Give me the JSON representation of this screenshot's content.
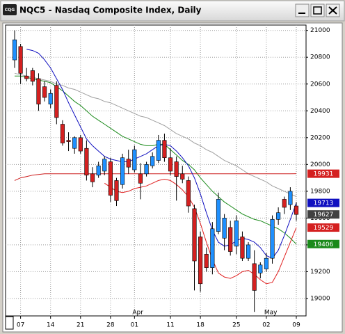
{
  "chart_data": {
    "type": "candlestick",
    "title": "NQC5 - Nasdaq Composite Index, Daily",
    "icon_text": "CQG",
    "categories": [
      null,
      "07",
      null,
      null,
      null,
      null,
      "14",
      null,
      null,
      null,
      null,
      "21",
      null,
      null,
      null,
      null,
      "28",
      null,
      null,
      null,
      "01",
      null,
      null,
      null,
      null,
      null,
      "11",
      null,
      null,
      null,
      null,
      "18",
      null,
      null,
      null,
      null,
      null,
      "25",
      null,
      null,
      null,
      null,
      "02",
      null,
      null,
      null,
      null,
      "09"
    ],
    "period_labels": [
      null,
      null,
      null,
      null,
      null,
      null,
      null,
      null,
      null,
      null,
      null,
      null,
      null,
      null,
      null,
      null,
      null,
      null,
      null,
      null,
      "Apr",
      null,
      null,
      null,
      null,
      null,
      null,
      null,
      null,
      null,
      null,
      null,
      null,
      null,
      null,
      null,
      null,
      null,
      null,
      null,
      null,
      null,
      "May",
      null,
      null,
      null,
      null,
      null
    ],
    "open": [
      20780,
      20880,
      20660,
      20700,
      20640,
      20580,
      20450,
      20590,
      20300,
      20180,
      20120,
      20200,
      20120,
      19930,
      19920,
      19950,
      20020,
      19880,
      19850,
      20040,
      19960,
      19930,
      19930,
      19990,
      20030,
      20180,
      20050,
      20020,
      19930,
      19880,
      19670,
      19460,
      19330,
      19230,
      19500,
      19450,
      19530,
      19390,
      19460,
      19300,
      19260,
      19190,
      19220,
      19300,
      19590,
      19740,
      19700,
      19690
    ],
    "high": [
      21000,
      20900,
      20720,
      20720,
      20680,
      20620,
      20560,
      20620,
      20330,
      20240,
      20210,
      20220,
      20180,
      19980,
      20020,
      20060,
      20050,
      19900,
      20080,
      20110,
      20140,
      20010,
      20020,
      20090,
      20220,
      20230,
      20120,
      20060,
      19990,
      19910,
      19700,
      19500,
      19380,
      19570,
      19790,
      19630,
      19580,
      19620,
      19500,
      19420,
      19360,
      19270,
      19340,
      19620,
      19680,
      19760,
      19830,
      19720
    ],
    "low": [
      20720,
      20600,
      20620,
      20590,
      20400,
      20470,
      20420,
      20300,
      20140,
      20100,
      20080,
      20080,
      19880,
      19830,
      19900,
      19920,
      19720,
      19690,
      19820,
      19930,
      19940,
      19740,
      19910,
      19970,
      20010,
      20020,
      19920,
      19730,
      19860,
      19640,
      19060,
      19050,
      19200,
      19180,
      19480,
      19360,
      19320,
      19330,
      19280,
      19280,
      18900,
      19150,
      19200,
      19260,
      19550,
      19630,
      19660,
      19580
    ],
    "close": [
      20930,
      20680,
      20640,
      20620,
      20450,
      20500,
      20530,
      20350,
      20160,
      20170,
      20200,
      20100,
      19920,
      19870,
      19990,
      20040,
      19770,
      19730,
      20050,
      19980,
      20110,
      19860,
      20000,
      20060,
      20180,
      20050,
      19950,
      19910,
      19890,
      19690,
      19280,
      19110,
      19230,
      19520,
      19740,
      19600,
      19350,
      19580,
      19300,
      19400,
      19060,
      19250,
      19300,
      19590,
      19640,
      19680,
      19800,
      19627
    ],
    "up_color": "#1e90ff",
    "down_color": "#d42020",
    "series": [
      {
        "color": "#a0a0a0",
        "values": [
          20680,
          20670,
          20660,
          20650,
          20640,
          20630,
          20620,
          20600,
          20590,
          20570,
          20560,
          20540,
          20520,
          20500,
          20490,
          20470,
          20460,
          20440,
          20420,
          20400,
          20380,
          20360,
          20350,
          20330,
          20310,
          20290,
          20260,
          20230,
          20210,
          20190,
          20160,
          20140,
          20110,
          20090,
          20060,
          20030,
          20010,
          19990,
          19960,
          19930,
          19910,
          19890,
          19870,
          19840,
          19820,
          19800,
          19780,
          19760
        ]
      },
      {
        "color": "#1a8a1a",
        "values": [
          20660,
          20660,
          20650,
          20640,
          20630,
          20620,
          20610,
          20580,
          20550,
          20510,
          20470,
          20440,
          20400,
          20360,
          20330,
          20300,
          20270,
          20240,
          20210,
          20190,
          20170,
          20150,
          20140,
          20140,
          20150,
          20150,
          20110,
          20070,
          20030,
          20000,
          19960,
          19900,
          19850,
          19800,
          19760,
          19720,
          19690,
          19660,
          19630,
          19610,
          19590,
          19580,
          19560,
          19540,
          19520,
          19490,
          19450,
          19406
        ]
      },
      {
        "color": "#cc1a1a",
        "values": [
          19880,
          19900,
          19910,
          19920,
          19925,
          19930,
          19930,
          19930,
          19930,
          19930,
          19930,
          19930,
          19930,
          19930,
          19930,
          19930,
          19930,
          19930,
          19930,
          19930,
          19930,
          19930,
          19930,
          19930,
          19930,
          19930,
          19930,
          19930,
          19930,
          19930,
          19930,
          19930,
          19930,
          19930,
          19930,
          19930,
          19930,
          19930,
          19930,
          19930,
          19930,
          19930,
          19930,
          19930,
          19930,
          19930,
          19930,
          19931
        ]
      },
      {
        "color": "#1010c0",
        "values": [
          null,
          null,
          20860,
          20850,
          20830,
          20780,
          20720,
          20640,
          20560,
          20460,
          20370,
          20280,
          20190,
          20140,
          20100,
          20060,
          20040,
          20030,
          20020,
          20020,
          20040,
          20060,
          20080,
          20110,
          20140,
          20150,
          20140,
          20100,
          20050,
          19990,
          19900,
          19780,
          19640,
          19510,
          19420,
          19390,
          19400,
          19430,
          19450,
          19440,
          19420,
          19380,
          19320,
          19300,
          19360,
          19470,
          19590,
          19713
        ]
      },
      {
        "color": "#e02020",
        "values": [
          null,
          null,
          null,
          null,
          null,
          null,
          null,
          null,
          null,
          null,
          null,
          null,
          null,
          null,
          null,
          19860,
          19830,
          19800,
          19790,
          19800,
          19820,
          19830,
          19840,
          19860,
          19880,
          19890,
          19880,
          19850,
          19810,
          19760,
          19680,
          19560,
          19420,
          19290,
          19190,
          19160,
          19150,
          19170,
          19200,
          19210,
          19180,
          19140,
          19110,
          19120,
          19200,
          19310,
          19420,
          19529
        ]
      }
    ],
    "ylim": [
      18870,
      21040
    ],
    "yticks": [
      19000,
      19200,
      19400,
      19600,
      19800,
      20000,
      20200,
      20400,
      20600,
      20800,
      21000
    ],
    "grid": true,
    "price_tags": [
      {
        "value": 19931,
        "color": "#d42020"
      },
      {
        "value": 19713,
        "color": "#1010c0"
      },
      {
        "value": 19627,
        "color": "#404040"
      },
      {
        "value": 19529,
        "color": "#d42020"
      },
      {
        "value": 19406,
        "color": "#1a8a1a"
      }
    ]
  }
}
